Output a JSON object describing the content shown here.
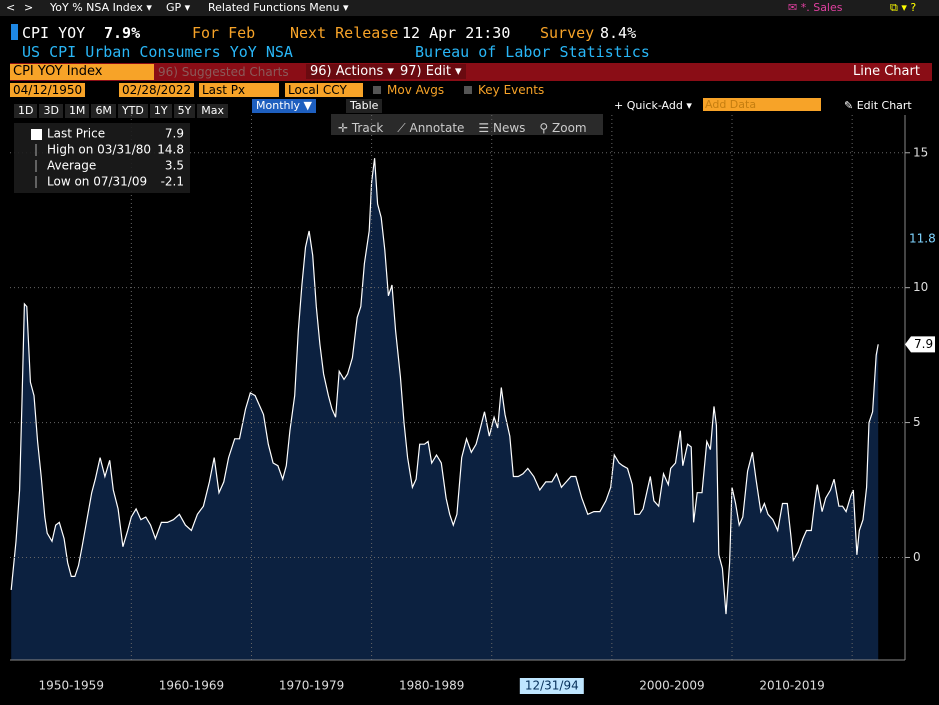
{
  "ui": {
    "topbar": {
      "back": "<",
      "fwd": ">",
      "menu1": "YoY % NSA Index ▾",
      "menu2": "GP ▾",
      "menu3": "Related Functions Menu ▾",
      "sales": "✉ *. Sales",
      "icons": "⧉ ▾ ?"
    },
    "header": {
      "ticker": "CPI YOY",
      "price": "7.9%",
      "for": "For Feb",
      "next_label": "Next Release",
      "next_value": "12 Apr 21:30",
      "survey_label": "Survey",
      "survey_value": "8.4%",
      "name": "US CPI Urban Consumers YoY NSA",
      "source": "Bureau of Labor Statistics"
    },
    "redbar": {
      "security": "CPI YOY Index",
      "suggested": "96) Suggested Charts",
      "actions": "96) Actions ▾",
      "edit": "97) Edit ▾",
      "chart_type": "Line Chart"
    },
    "settings": {
      "start": "04/12/1950",
      "end": "02/28/2022",
      "field": "Last Px",
      "currency": "Local CCY",
      "mov_avgs": "Mov Avgs",
      "key_events": "Key Events"
    },
    "periods": [
      "1D",
      "3D",
      "1M",
      "6M",
      "YTD",
      "1Y",
      "5Y",
      "Max"
    ],
    "frequency": "Monthly ▼",
    "table": "Table",
    "quick_add": "+ Quick-Add ▾",
    "add_data": "Add Data",
    "edit_chart": "✎ Edit Chart",
    "tools": [
      "✛ Track",
      "⟋ Annotate",
      "☰ News",
      "⚲ Zoom"
    ]
  },
  "chart_data": {
    "type": "area",
    "color": "#ffffff",
    "fill": "#0c2140",
    "grid": true,
    "xlim": [
      1949.9,
      2024.4
    ],
    "ylim": [
      -3.8,
      16.4
    ],
    "yticks": [
      0,
      5,
      10,
      15
    ],
    "xgrid": [
      1960,
      1970,
      1980,
      1990,
      2000,
      2010,
      2020
    ],
    "xticks": [
      {
        "value": 1955,
        "label": "1950-1959"
      },
      {
        "value": 1965,
        "label": "1960-1969"
      },
      {
        "value": 1975,
        "label": "1970-1979"
      },
      {
        "value": 1985,
        "label": "1980-1989"
      },
      {
        "value": 2005,
        "label": "2000-2009"
      },
      {
        "value": 2015,
        "label": "2010-2019"
      }
    ],
    "cursor": {
      "x": 1995,
      "label": "12/31/94"
    },
    "crosshair_value": 11.8,
    "last_value": 7.9,
    "legend": [
      {
        "name": "Last Price",
        "value": 7.9
      },
      {
        "name": "High on 03/31/80",
        "value": 14.8
      },
      {
        "name": "Average",
        "value": 3.5
      },
      {
        "name": "Low on 07/31/09",
        "value": -2.1
      }
    ],
    "x": [
      1950.0,
      1950.4,
      1950.7,
      1950.9,
      1951.1,
      1951.3,
      1951.6,
      1951.9,
      1952.2,
      1952.5,
      1952.8,
      1953.0,
      1953.4,
      1953.7,
      1954.0,
      1954.4,
      1954.7,
      1955.0,
      1955.3,
      1955.6,
      1955.9,
      1956.3,
      1956.7,
      1957.0,
      1957.4,
      1957.8,
      1958.2,
      1958.5,
      1958.9,
      1959.3,
      1959.7,
      1960.0,
      1960.4,
      1960.8,
      1961.2,
      1961.6,
      1962.0,
      1962.5,
      1963.0,
      1963.5,
      1964.0,
      1964.5,
      1965.0,
      1965.5,
      1966.0,
      1966.5,
      1966.9,
      1967.3,
      1967.7,
      1968.1,
      1968.6,
      1969.0,
      1969.5,
      1969.9,
      1970.3,
      1970.7,
      1971.0,
      1971.4,
      1971.8,
      1972.2,
      1972.6,
      1972.9,
      1973.2,
      1973.6,
      1973.9,
      1974.2,
      1974.5,
      1974.8,
      1975.1,
      1975.4,
      1975.7,
      1976.0,
      1976.4,
      1976.7,
      1977.0,
      1977.3,
      1977.7,
      1978.0,
      1978.4,
      1978.8,
      1979.1,
      1979.4,
      1979.8,
      1980.0,
      1980.25,
      1980.5,
      1980.8,
      1981.1,
      1981.4,
      1981.7,
      1982.0,
      1982.4,
      1982.7,
      1983.0,
      1983.4,
      1983.7,
      1984.0,
      1984.4,
      1984.7,
      1985.0,
      1985.4,
      1985.8,
      1986.2,
      1986.5,
      1986.8,
      1987.1,
      1987.5,
      1987.9,
      1988.3,
      1988.7,
      1989.0,
      1989.4,
      1989.8,
      1990.2,
      1990.5,
      1990.8,
      1991.1,
      1991.5,
      1991.8,
      1992.2,
      1992.6,
      1993.0,
      1993.5,
      1994.0,
      1994.5,
      1995.0,
      1995.4,
      1995.8,
      1996.2,
      1996.6,
      1997.0,
      1997.5,
      1998.0,
      1998.5,
      1999.0,
      1999.5,
      1999.9,
      2000.2,
      2000.6,
      2000.9,
      2001.3,
      2001.7,
      2001.9,
      2002.3,
      2002.6,
      2002.9,
      2003.2,
      2003.5,
      2003.9,
      2004.3,
      2004.7,
      2004.9,
      2005.3,
      2005.7,
      2005.9,
      2006.3,
      2006.6,
      2006.8,
      2007.1,
      2007.5,
      2007.9,
      2008.2,
      2008.5,
      2008.7,
      2008.9,
      2009.2,
      2009.5,
      2009.8,
      2010.0,
      2010.3,
      2010.6,
      2010.9,
      2011.3,
      2011.7,
      2012.0,
      2012.4,
      2012.7,
      2013.0,
      2013.4,
      2013.8,
      2014.2,
      2014.6,
      2014.9,
      2015.1,
      2015.5,
      2015.9,
      2016.2,
      2016.6,
      2016.9,
      2017.1,
      2017.5,
      2017.8,
      2018.2,
      2018.5,
      2018.9,
      2019.2,
      2019.5,
      2019.9,
      2020.1,
      2020.4,
      2020.6,
      2020.9,
      2021.2,
      2021.4,
      2021.7,
      2021.9,
      2022.0,
      2022.17
    ],
    "values": [
      -1.2,
      0.6,
      2.5,
      5.8,
      9.4,
      9.3,
      6.5,
      6.0,
      4.3,
      3.0,
      1.5,
      0.9,
      0.6,
      1.2,
      1.3,
      0.7,
      -0.2,
      -0.7,
      -0.7,
      -0.3,
      0.4,
      1.4,
      2.4,
      2.9,
      3.7,
      3.0,
      3.6,
      2.5,
      1.8,
      0.4,
      1.0,
      1.5,
      1.8,
      1.4,
      1.5,
      1.2,
      0.7,
      1.3,
      1.3,
      1.4,
      1.6,
      1.2,
      1.0,
      1.6,
      1.9,
      2.8,
      3.7,
      2.4,
      2.8,
      3.7,
      4.4,
      4.4,
      5.5,
      6.1,
      6.0,
      5.6,
      5.3,
      4.2,
      3.5,
      3.4,
      2.9,
      3.4,
      4.7,
      6.0,
      8.4,
      10.1,
      11.5,
      12.1,
      11.2,
      9.3,
      7.9,
      6.8,
      6.0,
      5.5,
      5.2,
      6.9,
      6.6,
      6.8,
      7.4,
      8.9,
      9.3,
      10.9,
      12.1,
      13.9,
      14.8,
      13.1,
      12.6,
      11.4,
      9.7,
      10.1,
      8.4,
      6.7,
      5.0,
      3.7,
      2.6,
      2.9,
      4.2,
      4.2,
      4.3,
      3.5,
      3.8,
      3.5,
      2.2,
      1.6,
      1.2,
      1.6,
      3.7,
      4.4,
      3.9,
      4.2,
      4.7,
      5.4,
      4.5,
      5.2,
      4.8,
      6.3,
      5.3,
      4.5,
      3.0,
      3.0,
      3.1,
      3.3,
      3.0,
      2.5,
      2.8,
      2.8,
      3.1,
      2.6,
      2.8,
      3.0,
      3.0,
      2.2,
      1.6,
      1.7,
      1.7,
      2.1,
      2.6,
      3.8,
      3.5,
      3.4,
      3.3,
      2.7,
      1.6,
      1.6,
      1.8,
      2.4,
      3.0,
      2.1,
      1.9,
      3.1,
      2.7,
      3.3,
      3.5,
      4.7,
      3.4,
      4.2,
      4.1,
      1.3,
      2.4,
      2.4,
      4.3,
      4.0,
      5.6,
      4.9,
      0.1,
      -0.4,
      -2.1,
      -0.2,
      2.6,
      2.0,
      1.2,
      1.5,
      3.2,
      3.9,
      2.9,
      1.7,
      2.0,
      1.6,
      1.4,
      1.0,
      2.0,
      2.0,
      0.8,
      -0.1,
      0.2,
      0.7,
      1.0,
      1.0,
      2.1,
      2.7,
      1.7,
      2.2,
      2.5,
      2.9,
      1.9,
      1.9,
      1.7,
      2.3,
      2.5,
      0.1,
      1.0,
      1.4,
      2.6,
      5.0,
      5.4,
      6.8,
      7.5,
      7.9
    ]
  }
}
